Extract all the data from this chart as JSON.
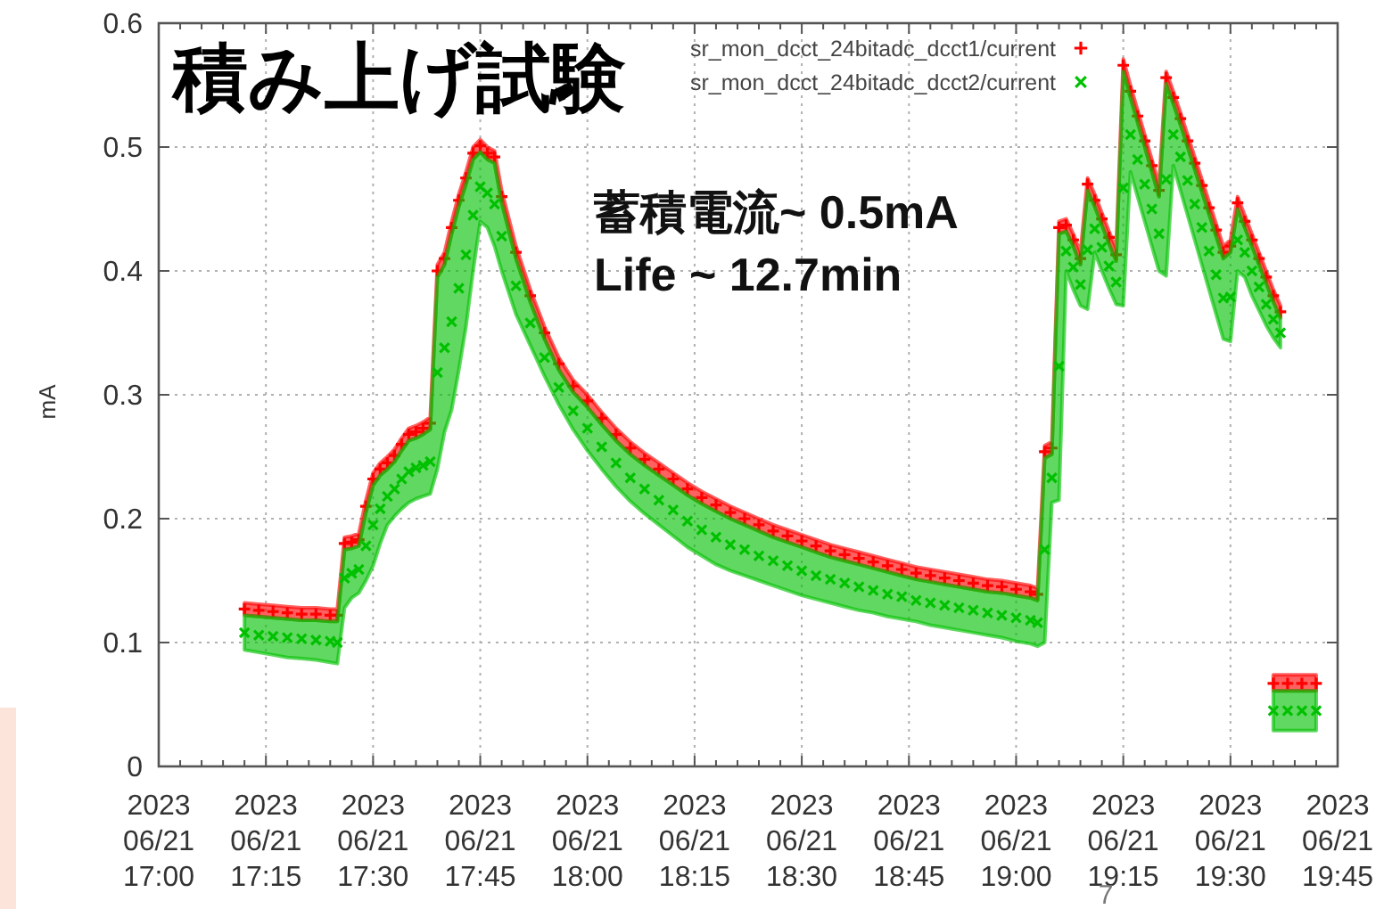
{
  "chart_data": {
    "type": "scatter",
    "title": "積み上げ試験",
    "ylabel": "mA",
    "annotations": [
      "蓄積電流~ 0.5mA",
      "Life ~ 12.7min",
      "7"
    ],
    "xlim": [
      "2023-06-21T17:00",
      "2023-06-21T19:45"
    ],
    "ylim": [
      0,
      0.6
    ],
    "xticks": [
      {
        "value": "2023-06-21T17:00",
        "label": "2023\n06/21\n17:00"
      },
      {
        "value": "2023-06-21T17:03",
        "label": null
      },
      {
        "value": "2023-06-21T17:06",
        "label": null
      },
      {
        "value": "2023-06-21T17:09",
        "label": null
      },
      {
        "value": "2023-06-21T17:12",
        "label": null
      },
      {
        "value": "2023-06-21T17:15",
        "label": "2023\n06/21\n17:15"
      },
      {
        "value": "2023-06-21T17:18",
        "label": null
      },
      {
        "value": "2023-06-21T17:21",
        "label": null
      },
      {
        "value": "2023-06-21T17:24",
        "label": null
      },
      {
        "value": "2023-06-21T17:27",
        "label": null
      },
      {
        "value": "2023-06-21T17:30",
        "label": "2023\n06/21\n17:30"
      },
      {
        "value": "2023-06-21T17:33",
        "label": null
      },
      {
        "value": "2023-06-21T17:36",
        "label": null
      },
      {
        "value": "2023-06-21T17:39",
        "label": null
      },
      {
        "value": "2023-06-21T17:42",
        "label": null
      },
      {
        "value": "2023-06-21T17:45",
        "label": "2023\n06/21\n17:45"
      },
      {
        "value": "2023-06-21T17:48",
        "label": null
      },
      {
        "value": "2023-06-21T17:51",
        "label": null
      },
      {
        "value": "2023-06-21T17:54",
        "label": null
      },
      {
        "value": "2023-06-21T17:57",
        "label": null
      },
      {
        "value": "2023-06-21T18:00",
        "label": "2023\n06/21\n18:00"
      },
      {
        "value": "2023-06-21T18:03",
        "label": null
      },
      {
        "value": "2023-06-21T18:06",
        "label": null
      },
      {
        "value": "2023-06-21T18:09",
        "label": null
      },
      {
        "value": "2023-06-21T18:12",
        "label": null
      },
      {
        "value": "2023-06-21T18:15",
        "label": "2023\n06/21\n18:15"
      },
      {
        "value": "2023-06-21T18:18",
        "label": null
      },
      {
        "value": "2023-06-21T18:21",
        "label": null
      },
      {
        "value": "2023-06-21T18:24",
        "label": null
      },
      {
        "value": "2023-06-21T18:27",
        "label": null
      },
      {
        "value": "2023-06-21T18:30",
        "label": "2023\n06/21\n18:30"
      },
      {
        "value": "2023-06-21T18:33",
        "label": null
      },
      {
        "value": "2023-06-21T18:36",
        "label": null
      },
      {
        "value": "2023-06-21T18:39",
        "label": null
      },
      {
        "value": "2023-06-21T18:42",
        "label": null
      },
      {
        "value": "2023-06-21T18:45",
        "label": "2023\n06/21\n18:45"
      },
      {
        "value": "2023-06-21T18:48",
        "label": null
      },
      {
        "value": "2023-06-21T18:51",
        "label": null
      },
      {
        "value": "2023-06-21T18:54",
        "label": null
      },
      {
        "value": "2023-06-21T18:57",
        "label": null
      },
      {
        "value": "2023-06-21T19:00",
        "label": "2023\n06/21\n19:00"
      },
      {
        "value": "2023-06-21T19:03",
        "label": null
      },
      {
        "value": "2023-06-21T19:06",
        "label": null
      },
      {
        "value": "2023-06-21T19:09",
        "label": null
      },
      {
        "value": "2023-06-21T19:12",
        "label": null
      },
      {
        "value": "2023-06-21T19:15",
        "label": "2023\n06/21\n19:15"
      },
      {
        "value": "2023-06-21T19:18",
        "label": null
      },
      {
        "value": "2023-06-21T19:21",
        "label": null
      },
      {
        "value": "2023-06-21T19:24",
        "label": null
      },
      {
        "value": "2023-06-21T19:27",
        "label": null
      },
      {
        "value": "2023-06-21T19:30",
        "label": "2023\n06/21\n19:30"
      },
      {
        "value": "2023-06-21T19:33",
        "label": null
      },
      {
        "value": "2023-06-21T19:36",
        "label": null
      },
      {
        "value": "2023-06-21T19:39",
        "label": null
      },
      {
        "value": "2023-06-21T19:42",
        "label": null
      },
      {
        "value": "2023-06-21T19:45",
        "label": "2023\n06/21\n19:45"
      }
    ],
    "yticks": [
      0,
      0.1,
      0.2,
      0.3,
      0.4,
      0.5,
      0.6
    ],
    "grid": true,
    "legend": "top right",
    "marker": "cross",
    "x": [
      "2023-06-21T17:12",
      "2023-06-21T17:14",
      "2023-06-21T17:16",
      "2023-06-21T17:18",
      "2023-06-21T17:20",
      "2023-06-21T17:22",
      "2023-06-21T17:24",
      "2023-06-21T17:25",
      "2023-06-21T17:26",
      "2023-06-21T17:27",
      "2023-06-21T17:28",
      "2023-06-21T17:29",
      "2023-06-21T17:30",
      "2023-06-21T17:31",
      "2023-06-21T17:32",
      "2023-06-21T17:33",
      "2023-06-21T17:34",
      "2023-06-21T17:35",
      "2023-06-21T17:36",
      "2023-06-21T17:37",
      "2023-06-21T17:38",
      "2023-06-21T17:39",
      "2023-06-21T17:40",
      "2023-06-21T17:41",
      "2023-06-21T17:42",
      "2023-06-21T17:43",
      "2023-06-21T17:44",
      "2023-06-21T17:45",
      "2023-06-21T17:46",
      "2023-06-21T17:47",
      "2023-06-21T17:48",
      "2023-06-21T17:50",
      "2023-06-21T17:52",
      "2023-06-21T17:54",
      "2023-06-21T17:56",
      "2023-06-21T17:58",
      "2023-06-21T18:00",
      "2023-06-21T18:02",
      "2023-06-21T18:04",
      "2023-06-21T18:06",
      "2023-06-21T18:08",
      "2023-06-21T18:10",
      "2023-06-21T18:12",
      "2023-06-21T18:14",
      "2023-06-21T18:16",
      "2023-06-21T18:18",
      "2023-06-21T18:20",
      "2023-06-21T18:22",
      "2023-06-21T18:24",
      "2023-06-21T18:26",
      "2023-06-21T18:28",
      "2023-06-21T18:30",
      "2023-06-21T18:32",
      "2023-06-21T18:34",
      "2023-06-21T18:36",
      "2023-06-21T18:38",
      "2023-06-21T18:40",
      "2023-06-21T18:42",
      "2023-06-21T18:44",
      "2023-06-21T18:46",
      "2023-06-21T18:48",
      "2023-06-21T18:50",
      "2023-06-21T18:52",
      "2023-06-21T18:54",
      "2023-06-21T18:56",
      "2023-06-21T18:58",
      "2023-06-21T19:00",
      "2023-06-21T19:02",
      "2023-06-21T19:03",
      "2023-06-21T19:04",
      "2023-06-21T19:05",
      "2023-06-21T19:06",
      "2023-06-21T19:07",
      "2023-06-21T19:08",
      "2023-06-21T19:09",
      "2023-06-21T19:10",
      "2023-06-21T19:11",
      "2023-06-21T19:12",
      "2023-06-21T19:13",
      "2023-06-21T19:14",
      "2023-06-21T19:15",
      "2023-06-21T19:16",
      "2023-06-21T19:17",
      "2023-06-21T19:18",
      "2023-06-21T19:19",
      "2023-06-21T19:20",
      "2023-06-21T19:21",
      "2023-06-21T19:22",
      "2023-06-21T19:23",
      "2023-06-21T19:24",
      "2023-06-21T19:25",
      "2023-06-21T19:26",
      "2023-06-21T19:27",
      "2023-06-21T19:28",
      "2023-06-21T19:29",
      "2023-06-21T19:30",
      "2023-06-21T19:31",
      "2023-06-21T19:32",
      "2023-06-21T19:33",
      "2023-06-21T19:34",
      "2023-06-21T19:35",
      "2023-06-21T19:36",
      "2023-06-21T19:37",
      null,
      "2023-06-21T19:36",
      "2023-06-21T19:38",
      "2023-06-21T19:40",
      "2023-06-21T19:42"
    ],
    "series": [
      {
        "name": "sr_mon_dcct_24bitadc_dcct1/current",
        "color": "#ff0000",
        "values": [
          0.127,
          0.126,
          0.125,
          0.124,
          0.123,
          0.123,
          0.122,
          0.122,
          0.18,
          0.181,
          0.183,
          0.21,
          0.232,
          0.24,
          0.245,
          0.251,
          0.26,
          0.268,
          0.27,
          0.273,
          0.277,
          0.4,
          0.41,
          0.435,
          0.457,
          0.475,
          0.495,
          0.501,
          0.495,
          0.492,
          0.46,
          0.415,
          0.38,
          0.35,
          0.325,
          0.307,
          0.295,
          0.281,
          0.268,
          0.257,
          0.248,
          0.24,
          0.232,
          0.224,
          0.217,
          0.211,
          0.205,
          0.2,
          0.195,
          0.19,
          0.186,
          0.182,
          0.178,
          0.174,
          0.171,
          0.168,
          0.165,
          0.162,
          0.159,
          0.156,
          0.154,
          0.152,
          0.15,
          0.148,
          0.146,
          0.145,
          0.143,
          0.141,
          0.139,
          0.254,
          0.257,
          0.435,
          0.437,
          0.425,
          0.41,
          0.47,
          0.457,
          0.442,
          0.427,
          0.413,
          0.566,
          0.545,
          0.525,
          0.505,
          0.485,
          0.465,
          0.556,
          0.54,
          0.523,
          0.505,
          0.487,
          0.469,
          0.451,
          0.433,
          0.415,
          0.42,
          0.455,
          0.44,
          0.425,
          0.41,
          0.395,
          0.38,
          0.367,
          null,
          0.067,
          0.067,
          0.067,
          0.067
        ],
        "lower": [
          0.122,
          0.121,
          0.12,
          0.119,
          0.118,
          0.118,
          0.117,
          0.117,
          0.175,
          0.176,
          0.178,
          0.205,
          0.227,
          0.235,
          0.24,
          0.246,
          0.255,
          0.263,
          0.265,
          0.268,
          0.272,
          0.395,
          0.405,
          0.43,
          0.452,
          0.47,
          0.49,
          0.496,
          0.49,
          0.487,
          0.455,
          0.41,
          0.375,
          0.345,
          0.32,
          0.302,
          0.29,
          0.276,
          0.263,
          0.252,
          0.243,
          0.235,
          0.227,
          0.219,
          0.212,
          0.206,
          0.2,
          0.195,
          0.19,
          0.185,
          0.181,
          0.177,
          0.173,
          0.169,
          0.166,
          0.163,
          0.16,
          0.157,
          0.154,
          0.151,
          0.149,
          0.147,
          0.145,
          0.143,
          0.141,
          0.14,
          0.138,
          0.136,
          0.134,
          0.249,
          0.252,
          0.43,
          0.432,
          0.42,
          0.405,
          0.465,
          0.452,
          0.437,
          0.422,
          0.408,
          0.561,
          0.54,
          0.52,
          0.5,
          0.48,
          0.46,
          0.551,
          0.535,
          0.518,
          0.5,
          0.482,
          0.464,
          0.446,
          0.428,
          0.41,
          0.415,
          0.45,
          0.435,
          0.42,
          0.405,
          0.39,
          0.375,
          0.362,
          null,
          0.061,
          0.061,
          0.061,
          0.061
        ],
        "upper": [
          0.132,
          0.131,
          0.13,
          0.129,
          0.128,
          0.128,
          0.127,
          0.127,
          0.185,
          0.186,
          0.188,
          0.215,
          0.237,
          0.245,
          0.25,
          0.256,
          0.265,
          0.273,
          0.275,
          0.278,
          0.282,
          0.405,
          0.415,
          0.44,
          0.462,
          0.48,
          0.5,
          0.506,
          0.5,
          0.497,
          0.465,
          0.42,
          0.385,
          0.355,
          0.33,
          0.312,
          0.3,
          0.286,
          0.273,
          0.262,
          0.253,
          0.245,
          0.237,
          0.229,
          0.222,
          0.216,
          0.21,
          0.205,
          0.2,
          0.195,
          0.191,
          0.187,
          0.183,
          0.179,
          0.176,
          0.173,
          0.17,
          0.167,
          0.164,
          0.161,
          0.159,
          0.157,
          0.155,
          0.153,
          0.151,
          0.15,
          0.148,
          0.146,
          0.144,
          0.259,
          0.262,
          0.44,
          0.442,
          0.43,
          0.415,
          0.475,
          0.462,
          0.447,
          0.432,
          0.418,
          0.571,
          0.55,
          0.53,
          0.51,
          0.49,
          0.47,
          0.561,
          0.545,
          0.528,
          0.51,
          0.492,
          0.474,
          0.456,
          0.438,
          0.42,
          0.425,
          0.46,
          0.445,
          0.43,
          0.415,
          0.4,
          0.385,
          0.372,
          null,
          0.074,
          0.074,
          0.074,
          0.074
        ]
      },
      {
        "name": "sr_mon_dcct_24bitadc_dcct2/current",
        "color": "#00c000",
        "values": [
          0.108,
          0.106,
          0.105,
          0.104,
          0.103,
          0.102,
          0.101,
          0.1,
          0.152,
          0.156,
          0.159,
          0.178,
          0.195,
          0.208,
          0.218,
          0.224,
          0.232,
          0.238,
          0.241,
          0.243,
          0.246,
          0.318,
          0.338,
          0.359,
          0.386,
          0.413,
          0.445,
          0.468,
          0.463,
          0.454,
          0.428,
          0.388,
          0.358,
          0.33,
          0.306,
          0.287,
          0.273,
          0.258,
          0.245,
          0.233,
          0.224,
          0.215,
          0.207,
          0.198,
          0.191,
          0.185,
          0.179,
          0.175,
          0.17,
          0.166,
          0.162,
          0.158,
          0.154,
          0.151,
          0.148,
          0.145,
          0.142,
          0.139,
          0.137,
          0.134,
          0.132,
          0.13,
          0.128,
          0.126,
          0.124,
          0.122,
          0.12,
          0.118,
          0.116,
          0.175,
          0.233,
          0.323,
          0.416,
          0.403,
          0.389,
          0.417,
          0.434,
          0.419,
          0.404,
          0.391,
          0.467,
          0.51,
          0.49,
          0.47,
          0.45,
          0.43,
          0.474,
          0.51,
          0.492,
          0.473,
          0.454,
          0.435,
          0.416,
          0.397,
          0.378,
          0.379,
          0.425,
          0.415,
          0.4,
          0.387,
          0.373,
          0.361,
          0.35,
          null,
          0.045,
          0.045,
          0.045,
          0.045
        ],
        "lower": [
          0.094,
          0.092,
          0.09,
          0.088,
          0.087,
          0.086,
          0.084,
          0.083,
          0.128,
          0.136,
          0.14,
          0.15,
          0.162,
          0.18,
          0.195,
          0.202,
          0.208,
          0.213,
          0.216,
          0.218,
          0.22,
          0.24,
          0.27,
          0.288,
          0.32,
          0.355,
          0.4,
          0.44,
          0.435,
          0.42,
          0.4,
          0.365,
          0.34,
          0.315,
          0.292,
          0.272,
          0.255,
          0.24,
          0.226,
          0.214,
          0.204,
          0.195,
          0.186,
          0.177,
          0.17,
          0.163,
          0.158,
          0.154,
          0.15,
          0.146,
          0.142,
          0.138,
          0.135,
          0.132,
          0.129,
          0.126,
          0.124,
          0.121,
          0.119,
          0.117,
          0.114,
          0.112,
          0.11,
          0.108,
          0.106,
          0.104,
          0.101,
          0.099,
          0.097,
          0.1,
          0.213,
          0.215,
          0.4,
          0.385,
          0.372,
          0.369,
          0.415,
          0.4,
          0.386,
          0.373,
          0.372,
          0.48,
          0.46,
          0.44,
          0.42,
          0.4,
          0.396,
          0.485,
          0.465,
          0.445,
          0.425,
          0.405,
          0.385,
          0.365,
          0.345,
          0.343,
          0.4,
          0.395,
          0.38,
          0.368,
          0.356,
          0.346,
          0.338,
          null,
          0.029,
          0.029,
          0.029,
          0.029
        ],
        "upper": [
          0.122,
          0.121,
          0.12,
          0.119,
          0.118,
          0.118,
          0.117,
          0.117,
          0.175,
          0.176,
          0.178,
          0.205,
          0.227,
          0.235,
          0.24,
          0.246,
          0.255,
          0.263,
          0.265,
          0.268,
          0.272,
          0.395,
          0.405,
          0.43,
          0.452,
          0.47,
          0.49,
          0.496,
          0.49,
          0.487,
          0.455,
          0.41,
          0.375,
          0.345,
          0.32,
          0.302,
          0.29,
          0.276,
          0.263,
          0.252,
          0.243,
          0.235,
          0.227,
          0.219,
          0.212,
          0.206,
          0.2,
          0.195,
          0.19,
          0.185,
          0.181,
          0.177,
          0.173,
          0.169,
          0.166,
          0.163,
          0.16,
          0.157,
          0.154,
          0.151,
          0.149,
          0.147,
          0.145,
          0.143,
          0.141,
          0.14,
          0.138,
          0.136,
          0.134,
          0.249,
          0.252,
          0.43,
          0.432,
          0.42,
          0.405,
          0.465,
          0.452,
          0.437,
          0.422,
          0.408,
          0.561,
          0.54,
          0.52,
          0.5,
          0.48,
          0.46,
          0.551,
          0.535,
          0.518,
          0.5,
          0.482,
          0.464,
          0.446,
          0.428,
          0.41,
          0.415,
          0.45,
          0.435,
          0.42,
          0.405,
          0.39,
          0.375,
          0.362,
          null,
          0.061,
          0.061,
          0.061,
          0.061
        ]
      }
    ]
  }
}
